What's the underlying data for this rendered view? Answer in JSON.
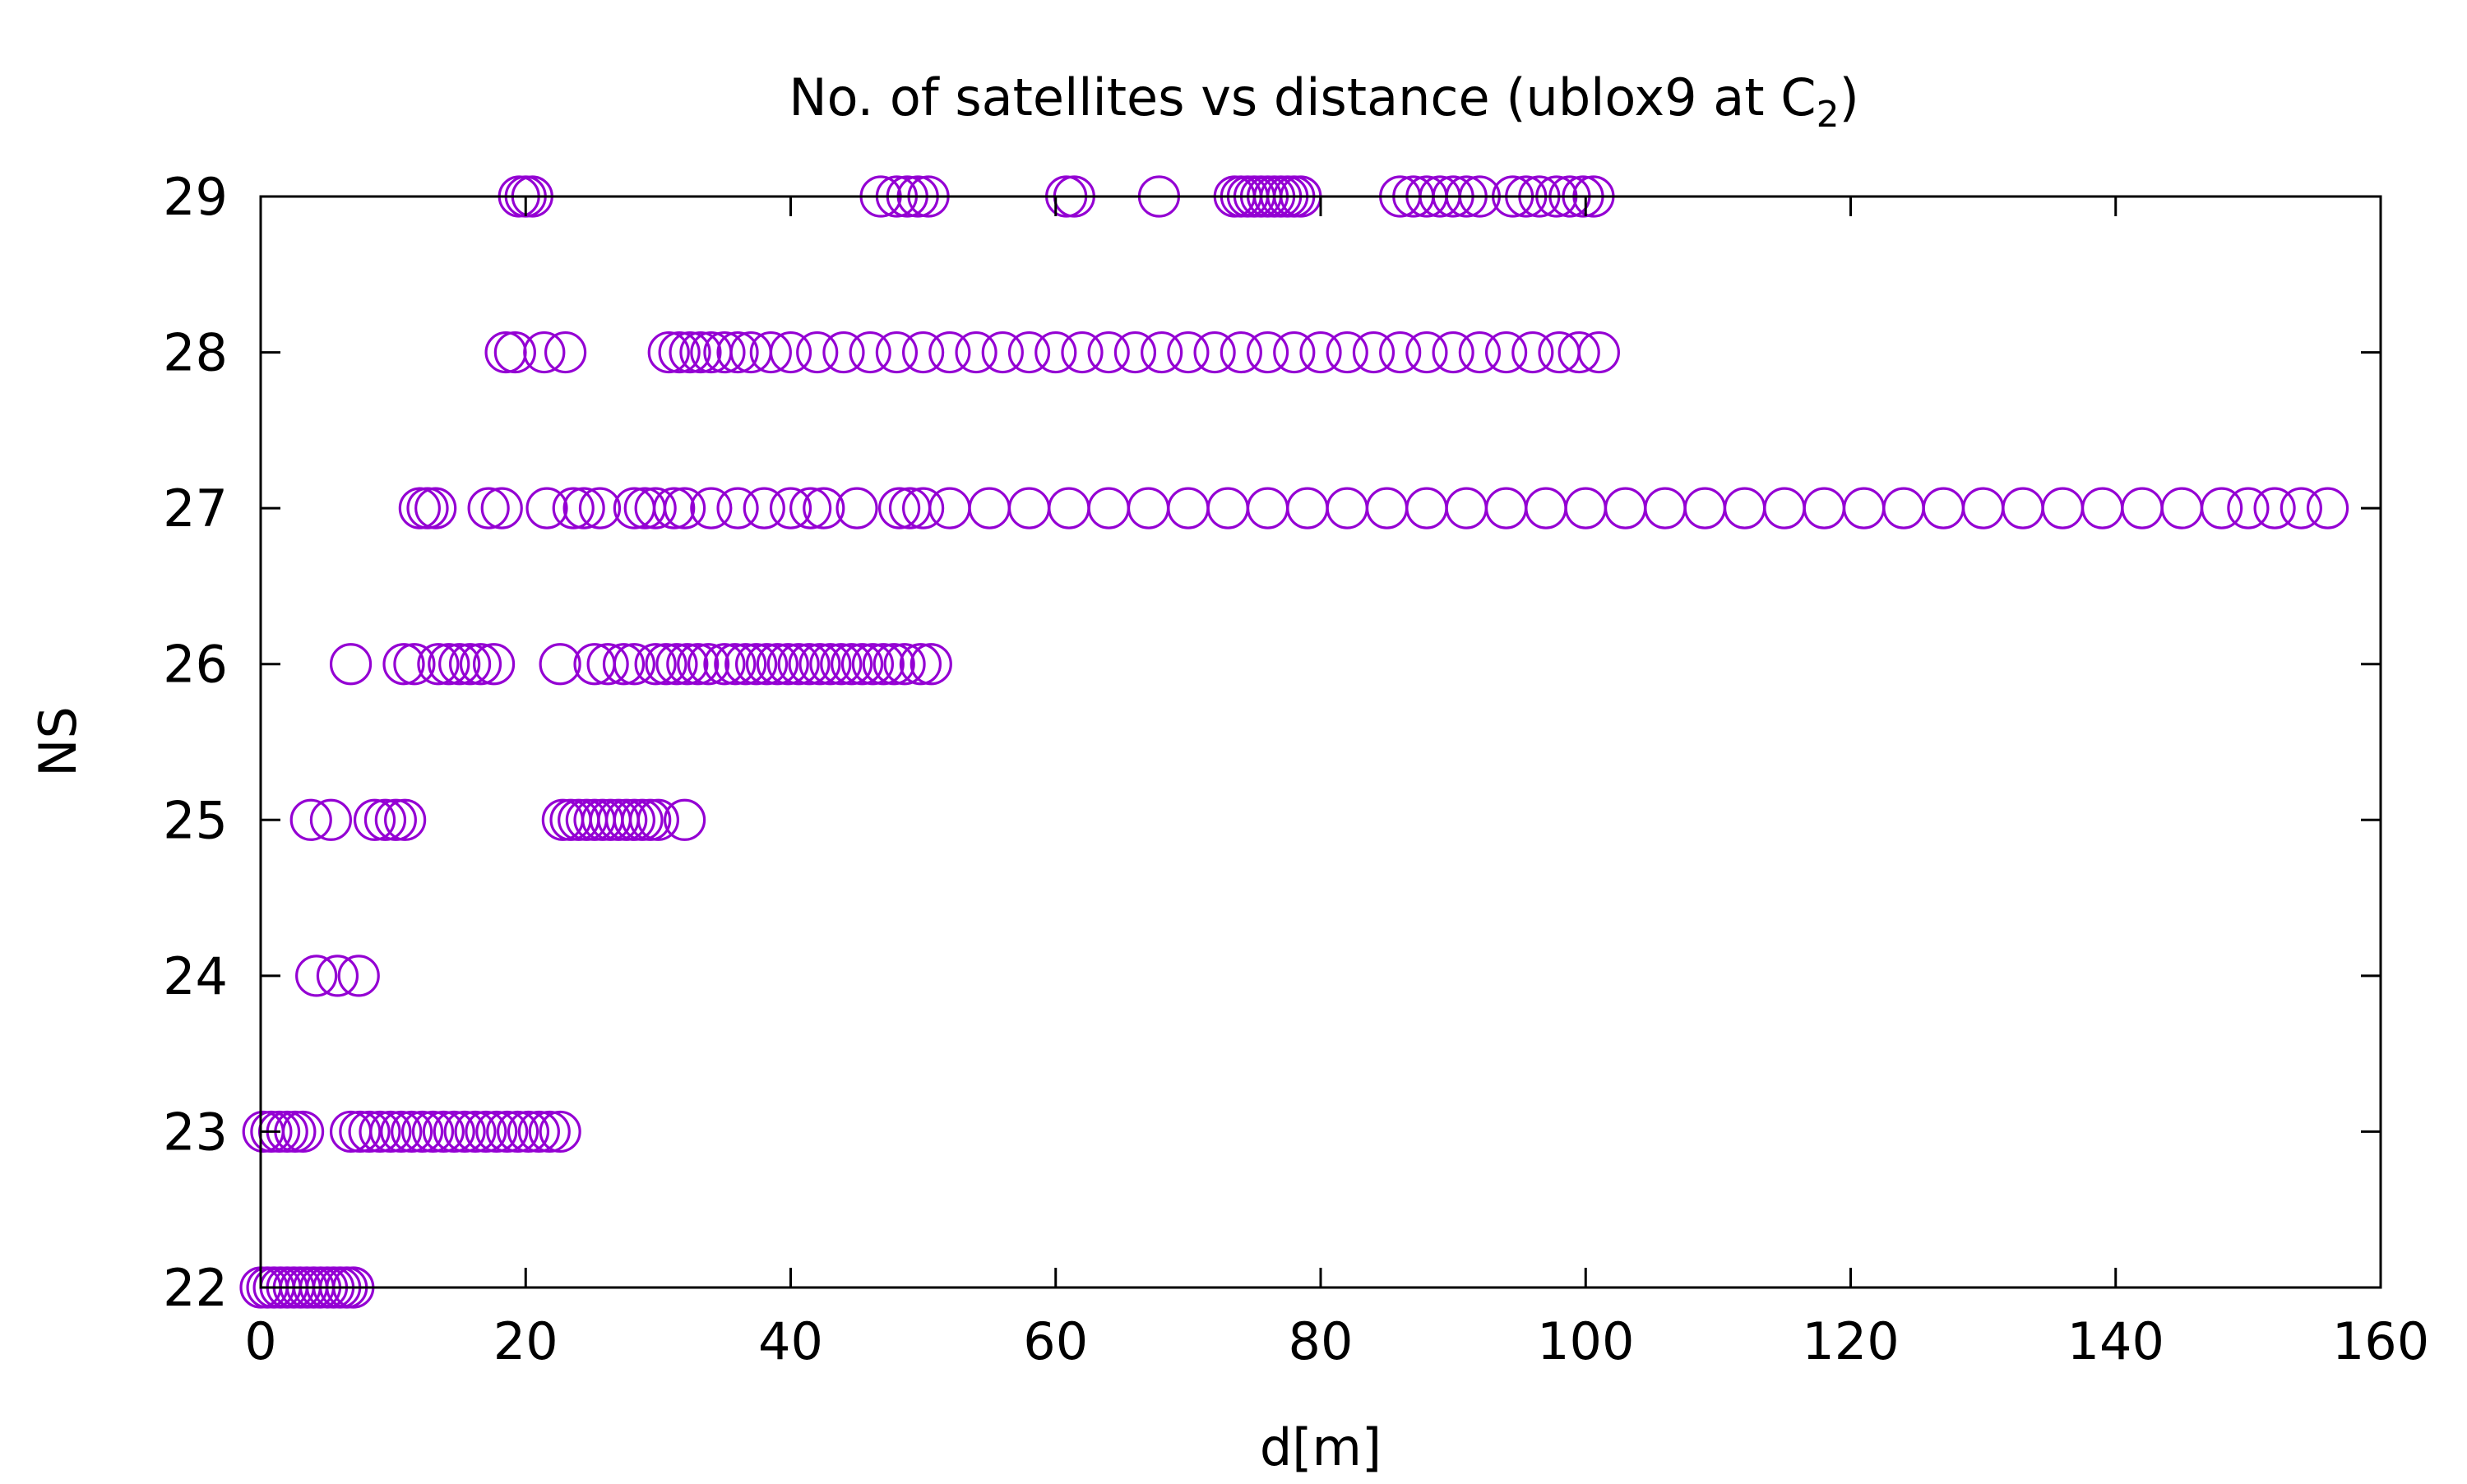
{
  "chart_data": {
    "type": "scatter",
    "title": "No. of satellites vs distance (ublox9 at C",
    "title_subscript": "2",
    "title_suffix": ")",
    "xlabel": "d[m]",
    "ylabel": "NS",
    "xlim": [
      0,
      160
    ],
    "ylim": [
      22,
      29
    ],
    "x_ticks": [
      0,
      20,
      40,
      60,
      80,
      100,
      120,
      140,
      160
    ],
    "x_tick_labels": [
      "0",
      "20",
      "40",
      "60",
      "80",
      "100",
      "120",
      "140",
      "160"
    ],
    "y_ticks": [
      22,
      23,
      24,
      25,
      26,
      27,
      28,
      29
    ],
    "y_tick_labels": [
      "22",
      "23",
      "24",
      "25",
      "26",
      "27",
      "28",
      "29"
    ],
    "marker": "open-circle",
    "color": "#9400D3",
    "grid": false,
    "series": [
      {
        "points": [
          {
            "x": 0.0,
            "y": 22
          },
          {
            "x": 0.5,
            "y": 22
          },
          {
            "x": 1.0,
            "y": 22
          },
          {
            "x": 1.5,
            "y": 22
          },
          {
            "x": 2.0,
            "y": 22
          },
          {
            "x": 2.5,
            "y": 22
          },
          {
            "x": 3.0,
            "y": 22
          },
          {
            "x": 3.5,
            "y": 22
          },
          {
            "x": 4.0,
            "y": 22
          },
          {
            "x": 4.5,
            "y": 22
          },
          {
            "x": 5.0,
            "y": 22
          },
          {
            "x": 5.5,
            "y": 22
          },
          {
            "x": 6.0,
            "y": 22
          },
          {
            "x": 6.5,
            "y": 22
          },
          {
            "x": 7.0,
            "y": 22
          },
          {
            "x": 0.2,
            "y": 23
          },
          {
            "x": 0.8,
            "y": 23
          },
          {
            "x": 1.4,
            "y": 23
          },
          {
            "x": 2.0,
            "y": 23
          },
          {
            "x": 2.6,
            "y": 23
          },
          {
            "x": 3.2,
            "y": 23
          },
          {
            "x": 6.8,
            "y": 23
          },
          {
            "x": 7.5,
            "y": 23
          },
          {
            "x": 8.2,
            "y": 23
          },
          {
            "x": 9.0,
            "y": 23
          },
          {
            "x": 9.8,
            "y": 23
          },
          {
            "x": 10.6,
            "y": 23
          },
          {
            "x": 11.4,
            "y": 23
          },
          {
            "x": 12.2,
            "y": 23
          },
          {
            "x": 13.0,
            "y": 23
          },
          {
            "x": 13.8,
            "y": 23
          },
          {
            "x": 14.6,
            "y": 23
          },
          {
            "x": 15.4,
            "y": 23
          },
          {
            "x": 16.2,
            "y": 23
          },
          {
            "x": 17.0,
            "y": 23
          },
          {
            "x": 17.8,
            "y": 23
          },
          {
            "x": 18.6,
            "y": 23
          },
          {
            "x": 19.4,
            "y": 23
          },
          {
            "x": 20.2,
            "y": 23
          },
          {
            "x": 21.0,
            "y": 23
          },
          {
            "x": 21.8,
            "y": 23
          },
          {
            "x": 22.6,
            "y": 23
          },
          {
            "x": 4.2,
            "y": 24
          },
          {
            "x": 5.8,
            "y": 24
          },
          {
            "x": 7.4,
            "y": 24
          },
          {
            "x": 3.8,
            "y": 25
          },
          {
            "x": 5.3,
            "y": 25
          },
          {
            "x": 8.6,
            "y": 25
          },
          {
            "x": 9.4,
            "y": 25
          },
          {
            "x": 10.2,
            "y": 25
          },
          {
            "x": 10.9,
            "y": 25
          },
          {
            "x": 22.8,
            "y": 25
          },
          {
            "x": 23.4,
            "y": 25
          },
          {
            "x": 24.0,
            "y": 25
          },
          {
            "x": 24.6,
            "y": 25
          },
          {
            "x": 25.2,
            "y": 25
          },
          {
            "x": 25.8,
            "y": 25
          },
          {
            "x": 26.4,
            "y": 25
          },
          {
            "x": 27.0,
            "y": 25
          },
          {
            "x": 27.6,
            "y": 25
          },
          {
            "x": 28.2,
            "y": 25
          },
          {
            "x": 28.8,
            "y": 25
          },
          {
            "x": 29.4,
            "y": 25
          },
          {
            "x": 30.0,
            "y": 25
          },
          {
            "x": 32.0,
            "y": 25
          },
          {
            "x": 6.8,
            "y": 26
          },
          {
            "x": 10.8,
            "y": 26
          },
          {
            "x": 11.6,
            "y": 26
          },
          {
            "x": 13.4,
            "y": 26
          },
          {
            "x": 14.2,
            "y": 26
          },
          {
            "x": 15.0,
            "y": 26
          },
          {
            "x": 15.8,
            "y": 26
          },
          {
            "x": 16.6,
            "y": 26
          },
          {
            "x": 17.6,
            "y": 26
          },
          {
            "x": 22.6,
            "y": 26
          },
          {
            "x": 25.2,
            "y": 26
          },
          {
            "x": 26.2,
            "y": 26
          },
          {
            "x": 27.4,
            "y": 26
          },
          {
            "x": 28.2,
            "y": 26
          },
          {
            "x": 29.8,
            "y": 26
          },
          {
            "x": 30.6,
            "y": 26
          },
          {
            "x": 31.4,
            "y": 26
          },
          {
            "x": 32.2,
            "y": 26
          },
          {
            "x": 33.0,
            "y": 26
          },
          {
            "x": 33.8,
            "y": 26
          },
          {
            "x": 35.0,
            "y": 26
          },
          {
            "x": 35.8,
            "y": 26
          },
          {
            "x": 36.6,
            "y": 26
          },
          {
            "x": 37.4,
            "y": 26
          },
          {
            "x": 38.2,
            "y": 26
          },
          {
            "x": 39.0,
            "y": 26
          },
          {
            "x": 39.8,
            "y": 26
          },
          {
            "x": 40.6,
            "y": 26
          },
          {
            "x": 41.4,
            "y": 26
          },
          {
            "x": 42.2,
            "y": 26
          },
          {
            "x": 43.0,
            "y": 26
          },
          {
            "x": 43.8,
            "y": 26
          },
          {
            "x": 44.6,
            "y": 26
          },
          {
            "x": 45.4,
            "y": 26
          },
          {
            "x": 46.2,
            "y": 26
          },
          {
            "x": 47.0,
            "y": 26
          },
          {
            "x": 47.8,
            "y": 26
          },
          {
            "x": 48.6,
            "y": 26
          },
          {
            "x": 49.8,
            "y": 26
          },
          {
            "x": 50.6,
            "y": 26
          },
          {
            "x": 12.0,
            "y": 27
          },
          {
            "x": 12.6,
            "y": 27
          },
          {
            "x": 13.2,
            "y": 27
          },
          {
            "x": 17.2,
            "y": 27
          },
          {
            "x": 18.2,
            "y": 27
          },
          {
            "x": 21.6,
            "y": 27
          },
          {
            "x": 23.6,
            "y": 27
          },
          {
            "x": 24.4,
            "y": 27
          },
          {
            "x": 25.6,
            "y": 27
          },
          {
            "x": 28.2,
            "y": 27
          },
          {
            "x": 29.0,
            "y": 27
          },
          {
            "x": 29.8,
            "y": 27
          },
          {
            "x": 31.2,
            "y": 27
          },
          {
            "x": 32.0,
            "y": 27
          },
          {
            "x": 34.0,
            "y": 27
          },
          {
            "x": 36.0,
            "y": 27
          },
          {
            "x": 38.0,
            "y": 27
          },
          {
            "x": 40.0,
            "y": 27
          },
          {
            "x": 41.5,
            "y": 27
          },
          {
            "x": 42.5,
            "y": 27
          },
          {
            "x": 45.0,
            "y": 27
          },
          {
            "x": 48.2,
            "y": 27
          },
          {
            "x": 49.0,
            "y": 27
          },
          {
            "x": 50.0,
            "y": 27
          },
          {
            "x": 52.0,
            "y": 27
          },
          {
            "x": 55.0,
            "y": 27
          },
          {
            "x": 58.0,
            "y": 27
          },
          {
            "x": 61.0,
            "y": 27
          },
          {
            "x": 64.0,
            "y": 27
          },
          {
            "x": 67.0,
            "y": 27
          },
          {
            "x": 70.0,
            "y": 27
          },
          {
            "x": 73.0,
            "y": 27
          },
          {
            "x": 76.0,
            "y": 27
          },
          {
            "x": 79.0,
            "y": 27
          },
          {
            "x": 82.0,
            "y": 27
          },
          {
            "x": 85.0,
            "y": 27
          },
          {
            "x": 88.0,
            "y": 27
          },
          {
            "x": 91.0,
            "y": 27
          },
          {
            "x": 94.0,
            "y": 27
          },
          {
            "x": 97.0,
            "y": 27
          },
          {
            "x": 100.0,
            "y": 27
          },
          {
            "x": 103.0,
            "y": 27
          },
          {
            "x": 106.0,
            "y": 27
          },
          {
            "x": 109.0,
            "y": 27
          },
          {
            "x": 112.0,
            "y": 27
          },
          {
            "x": 115.0,
            "y": 27
          },
          {
            "x": 118.0,
            "y": 27
          },
          {
            "x": 121.0,
            "y": 27
          },
          {
            "x": 124.0,
            "y": 27
          },
          {
            "x": 127.0,
            "y": 27
          },
          {
            "x": 130.0,
            "y": 27
          },
          {
            "x": 133.0,
            "y": 27
          },
          {
            "x": 136.0,
            "y": 27
          },
          {
            "x": 139.0,
            "y": 27
          },
          {
            "x": 142.0,
            "y": 27
          },
          {
            "x": 145.0,
            "y": 27
          },
          {
            "x": 148.0,
            "y": 27
          },
          {
            "x": 150.0,
            "y": 27
          },
          {
            "x": 152.0,
            "y": 27
          },
          {
            "x": 154.0,
            "y": 27
          },
          {
            "x": 156.0,
            "y": 27
          },
          {
            "x": 18.5,
            "y": 28
          },
          {
            "x": 19.2,
            "y": 28
          },
          {
            "x": 21.4,
            "y": 28
          },
          {
            "x": 23.0,
            "y": 28
          },
          {
            "x": 30.8,
            "y": 28
          },
          {
            "x": 31.6,
            "y": 28
          },
          {
            "x": 32.4,
            "y": 28
          },
          {
            "x": 33.2,
            "y": 28
          },
          {
            "x": 34.0,
            "y": 28
          },
          {
            "x": 35.0,
            "y": 28
          },
          {
            "x": 36.0,
            "y": 28
          },
          {
            "x": 37.0,
            "y": 28
          },
          {
            "x": 38.5,
            "y": 28
          },
          {
            "x": 40.0,
            "y": 28
          },
          {
            "x": 42.0,
            "y": 28
          },
          {
            "x": 44.0,
            "y": 28
          },
          {
            "x": 46.0,
            "y": 28
          },
          {
            "x": 48.0,
            "y": 28
          },
          {
            "x": 50.0,
            "y": 28
          },
          {
            "x": 52.0,
            "y": 28
          },
          {
            "x": 54.0,
            "y": 28
          },
          {
            "x": 56.0,
            "y": 28
          },
          {
            "x": 58.0,
            "y": 28
          },
          {
            "x": 60.0,
            "y": 28
          },
          {
            "x": 62.0,
            "y": 28
          },
          {
            "x": 64.0,
            "y": 28
          },
          {
            "x": 66.0,
            "y": 28
          },
          {
            "x": 68.0,
            "y": 28
          },
          {
            "x": 70.0,
            "y": 28
          },
          {
            "x": 72.0,
            "y": 28
          },
          {
            "x": 74.0,
            "y": 28
          },
          {
            "x": 76.0,
            "y": 28
          },
          {
            "x": 78.0,
            "y": 28
          },
          {
            "x": 80.0,
            "y": 28
          },
          {
            "x": 82.0,
            "y": 28
          },
          {
            "x": 84.0,
            "y": 28
          },
          {
            "x": 86.0,
            "y": 28
          },
          {
            "x": 88.0,
            "y": 28
          },
          {
            "x": 90.0,
            "y": 28
          },
          {
            "x": 92.0,
            "y": 28
          },
          {
            "x": 94.0,
            "y": 28
          },
          {
            "x": 96.0,
            "y": 28
          },
          {
            "x": 98.0,
            "y": 28
          },
          {
            "x": 99.5,
            "y": 28
          },
          {
            "x": 101.0,
            "y": 28
          },
          {
            "x": 19.5,
            "y": 29
          },
          {
            "x": 20.0,
            "y": 29
          },
          {
            "x": 20.5,
            "y": 29
          },
          {
            "x": 46.8,
            "y": 29
          },
          {
            "x": 48.0,
            "y": 29
          },
          {
            "x": 48.8,
            "y": 29
          },
          {
            "x": 49.6,
            "y": 29
          },
          {
            "x": 50.4,
            "y": 29
          },
          {
            "x": 60.8,
            "y": 29
          },
          {
            "x": 61.4,
            "y": 29
          },
          {
            "x": 67.8,
            "y": 29
          },
          {
            "x": 73.5,
            "y": 29
          },
          {
            "x": 74.0,
            "y": 29
          },
          {
            "x": 74.5,
            "y": 29
          },
          {
            "x": 75.0,
            "y": 29
          },
          {
            "x": 75.5,
            "y": 29
          },
          {
            "x": 76.0,
            "y": 29
          },
          {
            "x": 76.5,
            "y": 29
          },
          {
            "x": 77.0,
            "y": 29
          },
          {
            "x": 77.5,
            "y": 29
          },
          {
            "x": 78.0,
            "y": 29
          },
          {
            "x": 78.5,
            "y": 29
          },
          {
            "x": 86.0,
            "y": 29
          },
          {
            "x": 87.0,
            "y": 29
          },
          {
            "x": 88.0,
            "y": 29
          },
          {
            "x": 89.0,
            "y": 29
          },
          {
            "x": 90.0,
            "y": 29
          },
          {
            "x": 91.0,
            "y": 29
          },
          {
            "x": 92.0,
            "y": 29
          },
          {
            "x": 94.5,
            "y": 29
          },
          {
            "x": 95.5,
            "y": 29
          },
          {
            "x": 96.5,
            "y": 29
          },
          {
            "x": 97.8,
            "y": 29
          },
          {
            "x": 98.8,
            "y": 29
          },
          {
            "x": 99.8,
            "y": 29
          },
          {
            "x": 100.6,
            "y": 29
          }
        ]
      }
    ]
  }
}
